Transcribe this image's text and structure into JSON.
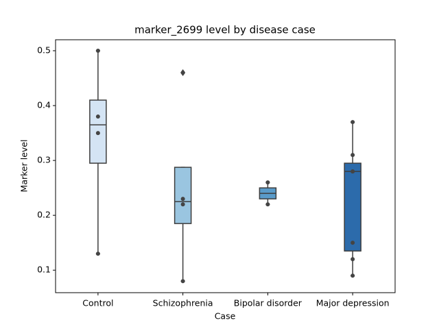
{
  "chart_data": {
    "type": "box",
    "title": "marker_2699 level by disease case",
    "x_label": "Case",
    "y_label": "Marker level",
    "categories": [
      "Control",
      "Schizophrenia",
      "Bipolar disorder",
      "Major depression"
    ],
    "colors": [
      "#d4e4f4",
      "#9ac5e0",
      "#5a9bc9",
      "#2c6bab"
    ],
    "boxes": [
      {
        "low": 0.13,
        "q1": 0.295,
        "median": 0.365,
        "q3": 0.41,
        "high": 0.5,
        "outliers": [],
        "points": [
          0.5,
          0.38,
          0.35,
          0.13
        ]
      },
      {
        "low": 0.08,
        "q1": 0.185,
        "median": 0.225,
        "q3": 0.2875,
        "high": 0.2875,
        "outliers": [
          0.46
        ],
        "points": [
          0.46,
          0.23,
          0.22,
          0.08
        ]
      },
      {
        "low": 0.22,
        "q1": 0.23,
        "median": 0.24,
        "q3": 0.25,
        "high": 0.26,
        "outliers": [],
        "points": [
          0.26,
          0.22
        ]
      },
      {
        "low": 0.09,
        "q1": 0.135,
        "median": 0.28,
        "q3": 0.295,
        "high": 0.37,
        "outliers": [],
        "points": [
          0.37,
          0.31,
          0.28,
          0.28,
          0.15,
          0.12,
          0.09
        ]
      }
    ],
    "ylim": [
      0.059,
      0.52
    ],
    "yticks": [
      0.1,
      0.2,
      0.3,
      0.4,
      0.5
    ]
  }
}
